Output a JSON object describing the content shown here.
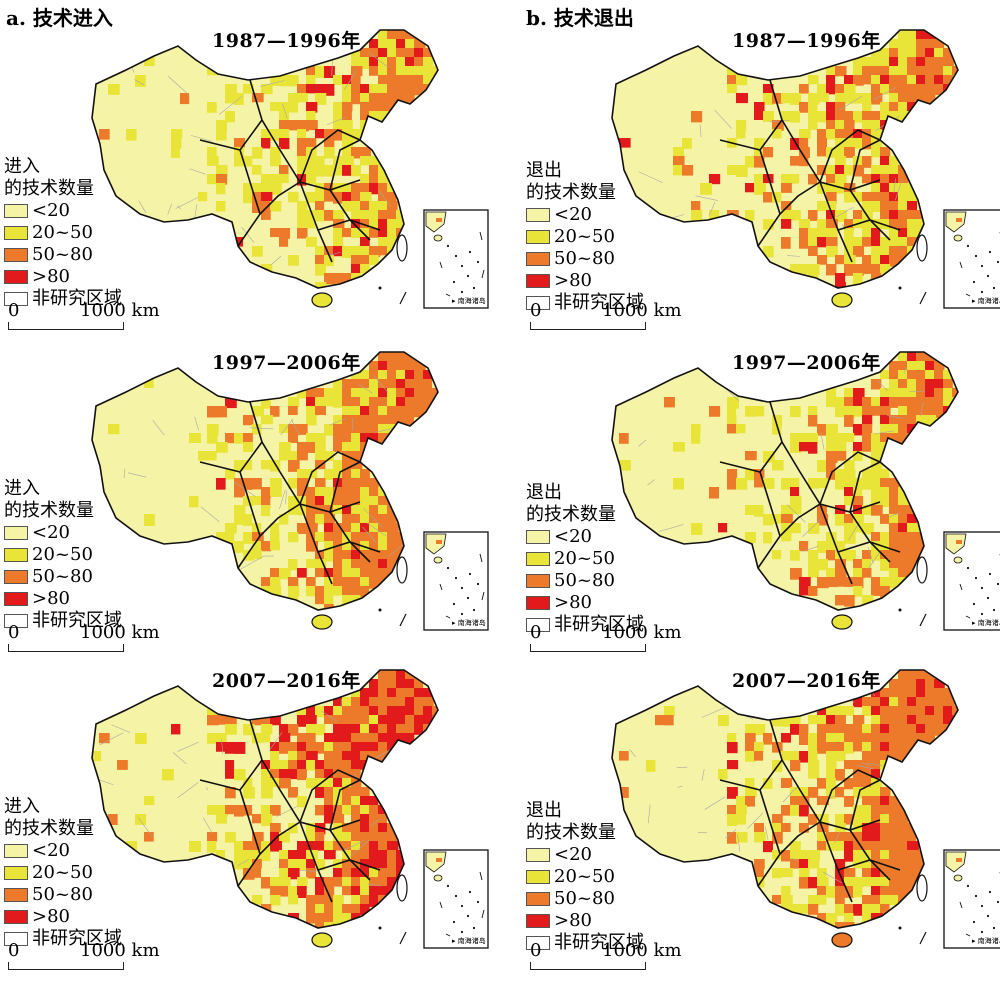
{
  "columns": [
    {
      "title": "a. 技术进入",
      "legend_title": [
        "进入",
        "的技术数量"
      ]
    },
    {
      "title": "b. 技术退出",
      "legend_title": [
        "退出",
        "的技术数量"
      ]
    }
  ],
  "periods": [
    "1987—1996年",
    "1997—2006年",
    "2007—2016年"
  ],
  "legend_classes": [
    {
      "label": "<20",
      "color": "#f5f3a6"
    },
    {
      "label": "20~50",
      "color": "#e8e438"
    },
    {
      "label": "50~80",
      "color": "#ec7a2a"
    },
    {
      "label": ">80",
      "color": "#e31a1c"
    },
    {
      "label": "非研究区域",
      "color": "#ffffff"
    }
  ],
  "scale": {
    "start": "0",
    "end": "1000 km"
  },
  "inset_label": "南海诸岛",
  "panels": [
    {
      "column": 0,
      "period": 0,
      "shares": [
        0.62,
        0.22,
        0.12,
        0.04
      ]
    },
    {
      "column": 1,
      "period": 0,
      "shares": [
        0.55,
        0.24,
        0.16,
        0.05
      ]
    },
    {
      "column": 0,
      "period": 1,
      "shares": [
        0.48,
        0.24,
        0.24,
        0.04
      ]
    },
    {
      "column": 1,
      "period": 1,
      "shares": [
        0.57,
        0.23,
        0.16,
        0.04
      ]
    },
    {
      "column": 0,
      "period": 2,
      "shares": [
        0.42,
        0.22,
        0.22,
        0.14
      ]
    },
    {
      "column": 1,
      "period": 2,
      "shares": [
        0.45,
        0.22,
        0.26,
        0.07
      ]
    }
  ]
}
